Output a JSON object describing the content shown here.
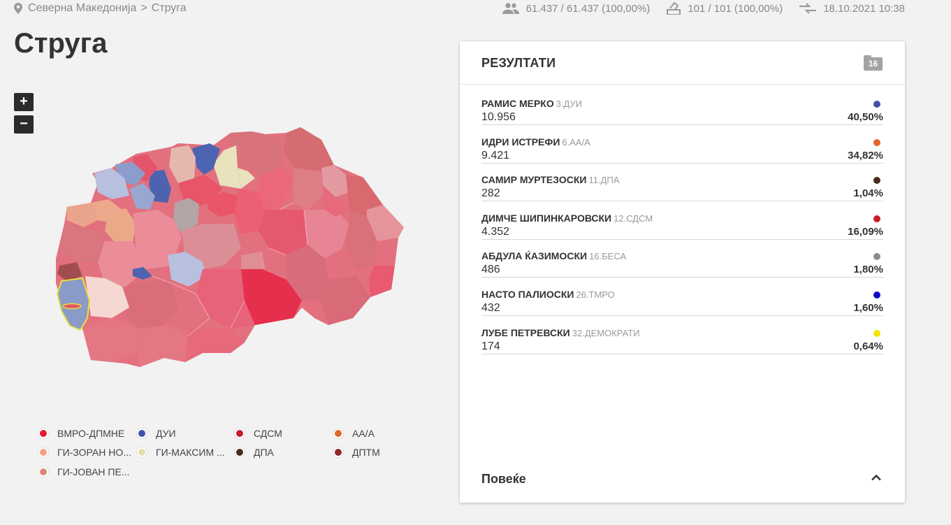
{
  "breadcrumb": {
    "country": "Северна Македонија",
    "separator": ">",
    "municipality": "Струга"
  },
  "stats": {
    "voters": "61.437 / 61.437 (100,00%)",
    "polling_stations": "101 / 101 (100,00%)",
    "updated": "18.10.2021 10:38"
  },
  "page_title": "Струга",
  "zoom": {
    "in_label": "+",
    "out_label": "−"
  },
  "legend": [
    {
      "label": "ВМРО-ДПМНЕ",
      "color": "#e8172f"
    },
    {
      "label": "ДУИ",
      "color": "#3f51a8"
    },
    {
      "label": "СДСМ",
      "color": "#c41e2f"
    },
    {
      "label": "АА/А",
      "color": "#e2682a"
    },
    {
      "label": "ГИ-ЗОРАН НО...",
      "color": "#f4a07e"
    },
    {
      "label": "ГИ-МАКСИМ ...",
      "color": "#e5ddaa"
    },
    {
      "label": "ДПА",
      "color": "#4a2a1e"
    },
    {
      "label": "ДПТМ",
      "color": "#8e2b2b"
    },
    {
      "label": "ГИ-ЈОВАН ПЕ...",
      "color": "#d48a74"
    }
  ],
  "results": {
    "title": "РЕЗУЛТАТИ",
    "badge_count": "16",
    "rows": [
      {
        "name": "РАМИС МЕРКО",
        "party": "3.ДУИ",
        "votes": "10.956",
        "pct": "40,50%",
        "color": "#3f51a8"
      },
      {
        "name": "ИДРИ ИСТРЕФИ",
        "party": "6.АА/А",
        "votes": "9.421",
        "pct": "34,82%",
        "color": "#e2682a"
      },
      {
        "name": "САМИР МУРТЕЗОСКИ",
        "party": "11.ДПА",
        "votes": "282",
        "pct": "1,04%",
        "color": "#4a2a1e"
      },
      {
        "name": "ДИМЧЕ ШИПИНКАРОВСКИ",
        "party": "12.СДСМ",
        "votes": "4.352",
        "pct": "16,09%",
        "color": "#c41e2f"
      },
      {
        "name": "АБДУЛА ЌАЗИМОСКИ",
        "party": "16.БЕСА",
        "votes": "486",
        "pct": "1,80%",
        "color": "#8c8c8c"
      },
      {
        "name": "НАСТО ПАЛИОСКИ",
        "party": "26.ТМРО",
        "votes": "432",
        "pct": "1,60%",
        "color": "#0a0ac8"
      },
      {
        "name": "ЛУБЕ ПЕТРЕВСКИ",
        "party": "32.ДЕМОКРАТИ",
        "votes": "174",
        "pct": "0,64%",
        "color": "#f5e400"
      }
    ],
    "more_label": "Повеќе"
  }
}
